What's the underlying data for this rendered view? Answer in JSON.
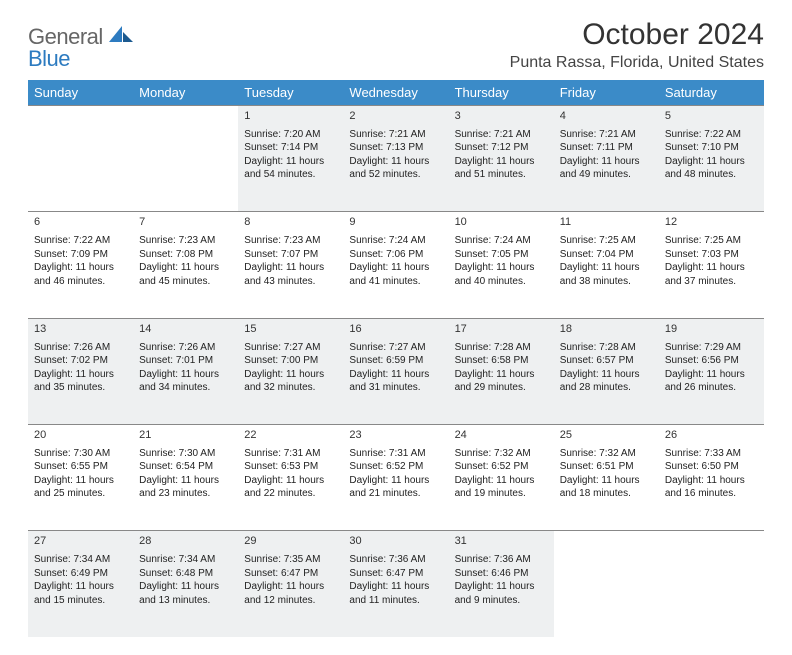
{
  "logo": {
    "line1": "General",
    "line2": "Blue"
  },
  "title": "October 2024",
  "location": "Punta Rassa, Florida, United States",
  "header_bg": "#3b8bc8",
  "header_fg": "#ffffff",
  "shade_bg": "#eef0f1",
  "border_color": "#888888",
  "weekdays": [
    "Sunday",
    "Monday",
    "Tuesday",
    "Wednesday",
    "Thursday",
    "Friday",
    "Saturday"
  ],
  "first_weekday_index": 2,
  "days": [
    {
      "n": 1,
      "sr": "7:20 AM",
      "ss": "7:14 PM",
      "dl": "11 hours and 54 minutes."
    },
    {
      "n": 2,
      "sr": "7:21 AM",
      "ss": "7:13 PM",
      "dl": "11 hours and 52 minutes."
    },
    {
      "n": 3,
      "sr": "7:21 AM",
      "ss": "7:12 PM",
      "dl": "11 hours and 51 minutes."
    },
    {
      "n": 4,
      "sr": "7:21 AM",
      "ss": "7:11 PM",
      "dl": "11 hours and 49 minutes."
    },
    {
      "n": 5,
      "sr": "7:22 AM",
      "ss": "7:10 PM",
      "dl": "11 hours and 48 minutes."
    },
    {
      "n": 6,
      "sr": "7:22 AM",
      "ss": "7:09 PM",
      "dl": "11 hours and 46 minutes."
    },
    {
      "n": 7,
      "sr": "7:23 AM",
      "ss": "7:08 PM",
      "dl": "11 hours and 45 minutes."
    },
    {
      "n": 8,
      "sr": "7:23 AM",
      "ss": "7:07 PM",
      "dl": "11 hours and 43 minutes."
    },
    {
      "n": 9,
      "sr": "7:24 AM",
      "ss": "7:06 PM",
      "dl": "11 hours and 41 minutes."
    },
    {
      "n": 10,
      "sr": "7:24 AM",
      "ss": "7:05 PM",
      "dl": "11 hours and 40 minutes."
    },
    {
      "n": 11,
      "sr": "7:25 AM",
      "ss": "7:04 PM",
      "dl": "11 hours and 38 minutes."
    },
    {
      "n": 12,
      "sr": "7:25 AM",
      "ss": "7:03 PM",
      "dl": "11 hours and 37 minutes."
    },
    {
      "n": 13,
      "sr": "7:26 AM",
      "ss": "7:02 PM",
      "dl": "11 hours and 35 minutes."
    },
    {
      "n": 14,
      "sr": "7:26 AM",
      "ss": "7:01 PM",
      "dl": "11 hours and 34 minutes."
    },
    {
      "n": 15,
      "sr": "7:27 AM",
      "ss": "7:00 PM",
      "dl": "11 hours and 32 minutes."
    },
    {
      "n": 16,
      "sr": "7:27 AM",
      "ss": "6:59 PM",
      "dl": "11 hours and 31 minutes."
    },
    {
      "n": 17,
      "sr": "7:28 AM",
      "ss": "6:58 PM",
      "dl": "11 hours and 29 minutes."
    },
    {
      "n": 18,
      "sr": "7:28 AM",
      "ss": "6:57 PM",
      "dl": "11 hours and 28 minutes."
    },
    {
      "n": 19,
      "sr": "7:29 AM",
      "ss": "6:56 PM",
      "dl": "11 hours and 26 minutes."
    },
    {
      "n": 20,
      "sr": "7:30 AM",
      "ss": "6:55 PM",
      "dl": "11 hours and 25 minutes."
    },
    {
      "n": 21,
      "sr": "7:30 AM",
      "ss": "6:54 PM",
      "dl": "11 hours and 23 minutes."
    },
    {
      "n": 22,
      "sr": "7:31 AM",
      "ss": "6:53 PM",
      "dl": "11 hours and 22 minutes."
    },
    {
      "n": 23,
      "sr": "7:31 AM",
      "ss": "6:52 PM",
      "dl": "11 hours and 21 minutes."
    },
    {
      "n": 24,
      "sr": "7:32 AM",
      "ss": "6:52 PM",
      "dl": "11 hours and 19 minutes."
    },
    {
      "n": 25,
      "sr": "7:32 AM",
      "ss": "6:51 PM",
      "dl": "11 hours and 18 minutes."
    },
    {
      "n": 26,
      "sr": "7:33 AM",
      "ss": "6:50 PM",
      "dl": "11 hours and 16 minutes."
    },
    {
      "n": 27,
      "sr": "7:34 AM",
      "ss": "6:49 PM",
      "dl": "11 hours and 15 minutes."
    },
    {
      "n": 28,
      "sr": "7:34 AM",
      "ss": "6:48 PM",
      "dl": "11 hours and 13 minutes."
    },
    {
      "n": 29,
      "sr": "7:35 AM",
      "ss": "6:47 PM",
      "dl": "11 hours and 12 minutes."
    },
    {
      "n": 30,
      "sr": "7:36 AM",
      "ss": "6:47 PM",
      "dl": "11 hours and 11 minutes."
    },
    {
      "n": 31,
      "sr": "7:36 AM",
      "ss": "6:46 PM",
      "dl": "11 hours and 9 minutes."
    }
  ],
  "labels": {
    "sunrise": "Sunrise:",
    "sunset": "Sunset:",
    "daylight": "Daylight:"
  }
}
